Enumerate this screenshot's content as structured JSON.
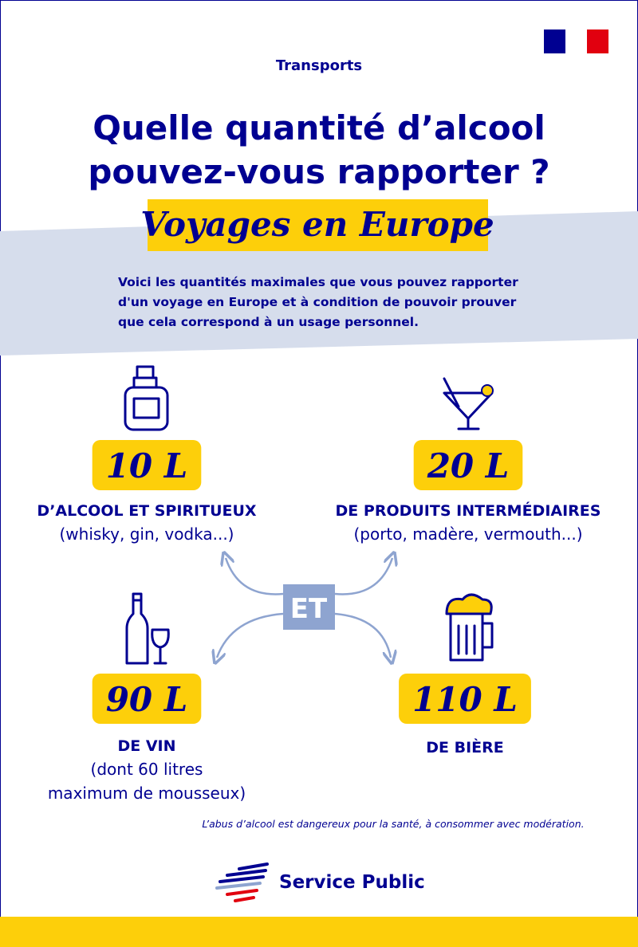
{
  "header": {
    "category": "Transports",
    "title": [
      "Quelle quantité d’alcool",
      "pouvez-vous rapporter ?"
    ],
    "subtitle": "Voyages en Europe",
    "intro": [
      "Voici les quantités maximales que vous pouvez rapporter",
      "d'un voyage en Europe et à condition de pouvoir prouver",
      "que cela correspond à un usage personnel."
    ]
  },
  "items": [
    {
      "amount": "10 L",
      "label": "D’ALCOOL ET SPIRITUEUX",
      "detail": [
        "(whisky, gin, vodka...)"
      ]
    },
    {
      "amount": "20 L",
      "label": "DE PRODUITS INTERMÉDIAIRES",
      "detail": [
        "(porto, madère, vermouth...)"
      ]
    },
    {
      "amount": "90 L",
      "label": "DE VIN",
      "detail": [
        "(dont 60 litres",
        "maximum de mousseux)"
      ]
    },
    {
      "amount": "110 L",
      "label": "DE BIÈRE",
      "detail": []
    }
  ],
  "connector": "ET",
  "disclaimer": "L’abus d’alcool est dangereux pour la santé, à consommer avec modération.",
  "footer": {
    "brand": "Service Public"
  }
}
